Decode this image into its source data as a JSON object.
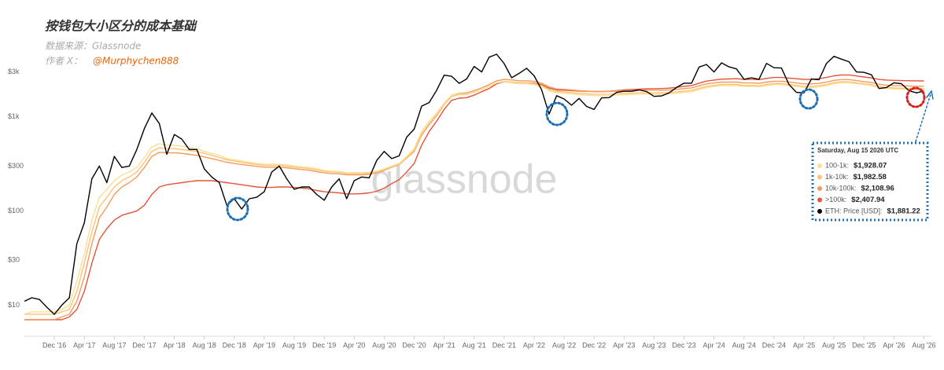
{
  "chart_data": {
    "type": "line",
    "title": "按钱包大小区分的成本基础",
    "source": "数据来源：Glassnode",
    "author_label": "作者 X：",
    "author_handle": "@Murphychen888",
    "watermark": "glassnode",
    "log_scale": true,
    "grid": false,
    "ylim": [
      4.5,
      5000
    ],
    "yticks": [
      {
        "value": 10,
        "label": "$10"
      },
      {
        "value": 30,
        "label": "$30"
      },
      {
        "value": 100,
        "label": "$100"
      },
      {
        "value": 300,
        "label": "$300"
      },
      {
        "value": 1000,
        "label": "$1k"
      },
      {
        "value": 3000,
        "label": "$3k"
      }
    ],
    "xlim": [
      "2016-08",
      "2026-09"
    ],
    "xticks": [
      {
        "value": "2016-12",
        "label": "Dec '16"
      },
      {
        "value": "2017-04",
        "label": "Apr '17"
      },
      {
        "value": "2017-08",
        "label": "Aug '17"
      },
      {
        "value": "2017-12",
        "label": "Dec '17"
      },
      {
        "value": "2018-04",
        "label": "Apr '18"
      },
      {
        "value": "2018-08",
        "label": "Aug '18"
      },
      {
        "value": "2018-12",
        "label": "Dec '18"
      },
      {
        "value": "2019-04",
        "label": "Apr '19"
      },
      {
        "value": "2019-08",
        "label": "Aug '19"
      },
      {
        "value": "2019-12",
        "label": "Dec '19"
      },
      {
        "value": "2020-04",
        "label": "Apr '20"
      },
      {
        "value": "2020-08",
        "label": "Aug '20"
      },
      {
        "value": "2020-12",
        "label": "Dec '20"
      },
      {
        "value": "2021-04",
        "label": "Apr '21"
      },
      {
        "value": "2021-08",
        "label": "Aug '21"
      },
      {
        "value": "2021-12",
        "label": "Dec '21"
      },
      {
        "value": "2022-04",
        "label": "Apr '22"
      },
      {
        "value": "2022-08",
        "label": "Aug '22"
      },
      {
        "value": "2022-12",
        "label": "Dec '22"
      },
      {
        "value": "2023-04",
        "label": "Apr '23"
      },
      {
        "value": "2023-08",
        "label": "Aug '23"
      },
      {
        "value": "2023-12",
        "label": "Dec '23"
      },
      {
        "value": "2024-04",
        "label": "Apr '24"
      },
      {
        "value": "2024-08",
        "label": "Aug '24"
      },
      {
        "value": "2024-12",
        "label": "Dec '24"
      },
      {
        "value": "2025-04",
        "label": "Apr '25"
      },
      {
        "value": "2025-08",
        "label": "Aug '25"
      },
      {
        "value": "2025-12",
        "label": "Dec '25"
      },
      {
        "value": "2026-04",
        "label": "Apr '26"
      },
      {
        "value": "2026-08",
        "label": "Aug '26"
      }
    ],
    "x": [
      "2016-08",
      "2016-09",
      "2016-10",
      "2016-11",
      "2016-12",
      "2017-01",
      "2017-02",
      "2017-03",
      "2017-04",
      "2017-05",
      "2017-06",
      "2017-07",
      "2017-08",
      "2017-09",
      "2017-10",
      "2017-11",
      "2017-12",
      "2018-01",
      "2018-02",
      "2018-03",
      "2018-04",
      "2018-05",
      "2018-06",
      "2018-07",
      "2018-08",
      "2018-09",
      "2018-10",
      "2018-11",
      "2018-12",
      "2019-01",
      "2019-02",
      "2019-03",
      "2019-04",
      "2019-05",
      "2019-06",
      "2019-07",
      "2019-08",
      "2019-09",
      "2019-10",
      "2019-11",
      "2019-12",
      "2020-01",
      "2020-02",
      "2020-03",
      "2020-04",
      "2020-05",
      "2020-06",
      "2020-07",
      "2020-08",
      "2020-09",
      "2020-10",
      "2020-11",
      "2020-12",
      "2021-01",
      "2021-02",
      "2021-03",
      "2021-04",
      "2021-05",
      "2021-06",
      "2021-07",
      "2021-08",
      "2021-09",
      "2021-10",
      "2021-11",
      "2021-12",
      "2022-01",
      "2022-02",
      "2022-03",
      "2022-04",
      "2022-05",
      "2022-06",
      "2022-07",
      "2022-08",
      "2022-09",
      "2022-10",
      "2022-11",
      "2022-12",
      "2023-01",
      "2023-02",
      "2023-03",
      "2023-04",
      "2023-05",
      "2023-06",
      "2023-07",
      "2023-08",
      "2023-09",
      "2023-10",
      "2023-11",
      "2023-12",
      "2024-01",
      "2024-02",
      "2024-03",
      "2024-04",
      "2024-05",
      "2024-06",
      "2024-07",
      "2024-08",
      "2024-09",
      "2024-10",
      "2024-11",
      "2024-12",
      "2025-01",
      "2025-02",
      "2025-03",
      "2025-04",
      "2025-05",
      "2025-06",
      "2025-07",
      "2025-08",
      "2025-09",
      "2025-10",
      "2025-11",
      "2025-12",
      "2026-01",
      "2026-02",
      "2026-03",
      "2026-04",
      "2026-05",
      "2026-06",
      "2026-07",
      "2026-08"
    ],
    "series": [
      {
        "name": "100-1k:",
        "color": "#fbe08e",
        "values": [
          8,
          8.5,
          8.5,
          8.5,
          8.5,
          9,
          10,
          18,
          35,
          80,
          140,
          170,
          210,
          240,
          260,
          290,
          370,
          480,
          520,
          500,
          500,
          490,
          470,
          460,
          430,
          410,
          390,
          360,
          350,
          340,
          330,
          320,
          315,
          315,
          315,
          310,
          300,
          295,
          290,
          280,
          270,
          265,
          262,
          255,
          255,
          255,
          258,
          265,
          280,
          300,
          320,
          380,
          460,
          700,
          900,
          1100,
          1400,
          1700,
          1750,
          1750,
          1850,
          1950,
          2100,
          2300,
          2350,
          2300,
          2250,
          2250,
          2200,
          2100,
          1900,
          1800,
          1780,
          1750,
          1720,
          1700,
          1680,
          1680,
          1680,
          1700,
          1720,
          1730,
          1740,
          1750,
          1740,
          1740,
          1750,
          1780,
          1820,
          1850,
          1950,
          2050,
          2100,
          2150,
          2150,
          2150,
          2100,
          2100,
          2080,
          2150,
          2200,
          2200,
          2150,
          2100,
          2050,
          2050,
          2080,
          2150,
          2250,
          2300,
          2300,
          2250,
          2200,
          2150,
          2050,
          2000,
          1980,
          1970,
          1950,
          1935,
          1928.07
        ]
      },
      {
        "name": "1k-10k:",
        "color": "#fcc27c",
        "values": [
          8,
          8,
          8,
          8,
          8,
          8.5,
          9,
          14,
          28,
          60,
          110,
          140,
          180,
          210,
          230,
          260,
          330,
          430,
          470,
          460,
          460,
          450,
          440,
          430,
          410,
          390,
          370,
          350,
          340,
          330,
          320,
          312,
          305,
          305,
          305,
          300,
          292,
          287,
          282,
          273,
          265,
          260,
          258,
          250,
          250,
          250,
          253,
          260,
          275,
          295,
          315,
          370,
          440,
          660,
          850,
          1050,
          1350,
          1650,
          1720,
          1730,
          1830,
          1950,
          2100,
          2300,
          2380,
          2350,
          2300,
          2300,
          2250,
          2150,
          1950,
          1860,
          1840,
          1810,
          1780,
          1760,
          1740,
          1740,
          1740,
          1760,
          1780,
          1790,
          1800,
          1810,
          1800,
          1800,
          1810,
          1840,
          1880,
          1910,
          2010,
          2110,
          2160,
          2210,
          2210,
          2210,
          2160,
          2160,
          2140,
          2210,
          2260,
          2260,
          2210,
          2160,
          2110,
          2110,
          2140,
          2210,
          2310,
          2360,
          2360,
          2300,
          2250,
          2200,
          2100,
          2050,
          2030,
          2020,
          2000,
          1990,
          1982.58
        ]
      },
      {
        "name": "10k-100k:",
        "color": "#f59a5c",
        "values": [
          7,
          7,
          7,
          7,
          7,
          7.5,
          8,
          11,
          20,
          45,
          85,
          110,
          150,
          180,
          200,
          230,
          290,
          380,
          420,
          415,
          415,
          410,
          400,
          390,
          375,
          360,
          345,
          330,
          320,
          312,
          305,
          298,
          292,
          292,
          292,
          288,
          281,
          276,
          271,
          262,
          255,
          250,
          248,
          242,
          242,
          242,
          246,
          254,
          270,
          292,
          312,
          365,
          430,
          640,
          830,
          1030,
          1350,
          1700,
          1780,
          1800,
          1900,
          2030,
          2200,
          2420,
          2500,
          2470,
          2420,
          2420,
          2380,
          2280,
          2080,
          1980,
          1960,
          1930,
          1900,
          1880,
          1860,
          1860,
          1860,
          1880,
          1900,
          1910,
          1920,
          1930,
          1920,
          1920,
          1930,
          1960,
          2000,
          2030,
          2140,
          2240,
          2290,
          2340,
          2340,
          2340,
          2290,
          2290,
          2270,
          2340,
          2390,
          2390,
          2340,
          2290,
          2240,
          2240,
          2270,
          2340,
          2440,
          2490,
          2490,
          2430,
          2370,
          2320,
          2220,
          2170,
          2150,
          2140,
          2125,
          2115,
          2108.96
        ]
      },
      {
        "name": ">100k:",
        "color": "#e4533a",
        "values": [
          7,
          7,
          7,
          7,
          7,
          7,
          7.5,
          9,
          14,
          28,
          50,
          65,
          80,
          90,
          95,
          100,
          115,
          150,
          180,
          190,
          195,
          200,
          205,
          210,
          210,
          210,
          205,
          200,
          195,
          190,
          185,
          180,
          178,
          178,
          180,
          180,
          178,
          175,
          172,
          165,
          160,
          158,
          156,
          152,
          152,
          153,
          156,
          162,
          175,
          195,
          215,
          260,
          320,
          500,
          700,
          900,
          1200,
          1500,
          1580,
          1600,
          1700,
          1850,
          2000,
          2250,
          2350,
          2330,
          2300,
          2300,
          2280,
          2200,
          2020,
          1930,
          1920,
          1900,
          1880,
          1870,
          1860,
          1860,
          1870,
          1900,
          1930,
          1950,
          1970,
          1990,
          1990,
          2000,
          2020,
          2060,
          2110,
          2150,
          2280,
          2400,
          2460,
          2520,
          2530,
          2540,
          2500,
          2500,
          2490,
          2560,
          2620,
          2620,
          2580,
          2540,
          2500,
          2500,
          2540,
          2620,
          2730,
          2790,
          2790,
          2720,
          2650,
          2590,
          2500,
          2460,
          2440,
          2430,
          2420,
          2412,
          2407.94
        ]
      },
      {
        "name": "ETH: Price [USD]:",
        "color": "#000000",
        "values": [
          11,
          12,
          11.5,
          9.5,
          8,
          10,
          12,
          45,
          75,
          220,
          300,
          200,
          380,
          290,
          300,
          450,
          750,
          1100,
          850,
          400,
          650,
          580,
          450,
          450,
          280,
          230,
          200,
          115,
          135,
          105,
          135,
          140,
          160,
          260,
          300,
          220,
          170,
          180,
          180,
          150,
          130,
          180,
          220,
          135,
          210,
          230,
          225,
          345,
          430,
          360,
          385,
          610,
          740,
          1300,
          1420,
          1920,
          2770,
          2700,
          2270,
          2530,
          3430,
          3000,
          4300,
          4630,
          3680,
          2600,
          2900,
          3280,
          2730,
          1940,
          1070,
          1680,
          1550,
          1330,
          1570,
          1290,
          1200,
          1590,
          1600,
          1820,
          1870,
          1870,
          1930,
          1860,
          1650,
          1670,
          1800,
          2050,
          2280,
          2280,
          3380,
          3600,
          3000,
          3750,
          3400,
          3230,
          2510,
          2600,
          2510,
          3700,
          3330,
          3300,
          2200,
          1820,
          1800,
          2530,
          2480,
          3700,
          4400,
          4100,
          3850,
          3000,
          2970,
          2800,
          2000,
          2050,
          2300,
          2250,
          1900,
          1800,
          1881.22
        ]
      }
    ],
    "tooltip": {
      "title": "Saturday, Aug 15 2026 UTC",
      "value_labels": [
        "$1,928.07",
        "$1,982.58",
        "$2,108.96",
        "$2,407.94",
        "$1,881.22"
      ]
    }
  }
}
